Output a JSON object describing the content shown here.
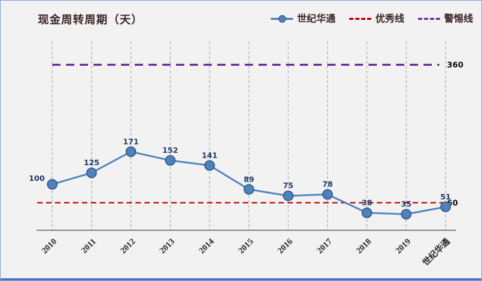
{
  "chart_data": {
    "type": "line",
    "title": "现金周转周期（天）",
    "categories": [
      "2010",
      "2011",
      "2012",
      "2013",
      "2014",
      "2015",
      "2016",
      "2017",
      "2018",
      "2019",
      "世纪华通"
    ],
    "series": [
      {
        "name": "世纪华通",
        "color": "#4f81bd",
        "values": [
          100,
          125,
          171,
          152,
          141,
          89,
          75,
          78,
          38,
          35,
          51
        ]
      }
    ],
    "reference_lines": [
      {
        "name": "优秀线",
        "value": 60,
        "label": "60",
        "color": "#c00000"
      },
      {
        "name": "警惕线",
        "value": 360,
        "label": "360",
        "color": "#7030a0"
      }
    ],
    "xlabel": "",
    "ylabel": "",
    "ylim": [
      0,
      410
    ],
    "grid": "vertical-dashed",
    "legend_position": "top-right"
  },
  "legend": [
    {
      "label": "世纪华通",
      "swatch": "line-marker",
      "color": "#4f81bd"
    },
    {
      "label": "优秀线",
      "swatch": "dashed",
      "color": "#c00000"
    },
    {
      "label": "警惕线",
      "swatch": "dashed",
      "color": "#7030a0"
    }
  ],
  "colors": {
    "background": "#f3f2f3",
    "frame_border": "#88a6d4",
    "bottom_bar": "#4472c4",
    "grid": "#a6a6a6",
    "axis": "#595959",
    "series": "#4f81bd",
    "marker_border": "#2c5782",
    "data_label": "#1f3864",
    "tick_label": "#262626",
    "ref_label": "#111111",
    "title_text": "#3a2323"
  }
}
